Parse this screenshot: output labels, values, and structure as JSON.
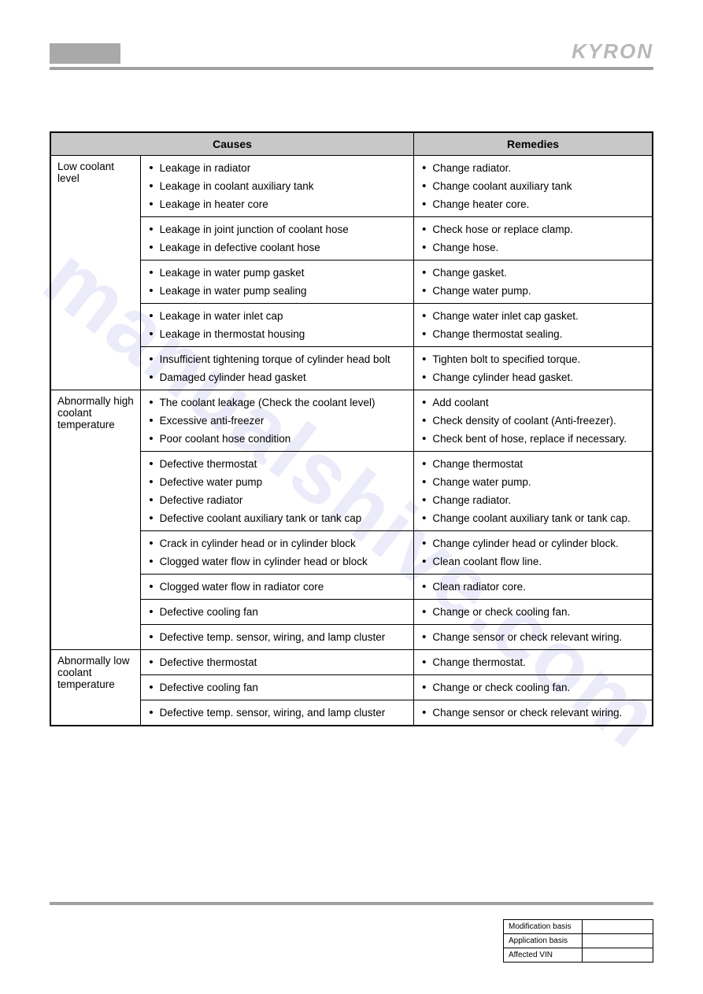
{
  "brand": "KYRON",
  "headers": {
    "causes": "Causes",
    "remedies": "Remedies"
  },
  "sections": [
    {
      "label": "Low coolant level",
      "groups": [
        {
          "causes": [
            "Leakage in radiator",
            "Leakage in coolant auxiliary tank",
            "Leakage in heater core"
          ],
          "remedies": [
            "Change radiator.",
            "Change coolant auxiliary tank",
            "Change heater core."
          ]
        },
        {
          "causes": [
            "Leakage in joint junction of coolant hose",
            "Leakage in defective coolant hose"
          ],
          "remedies": [
            "Check hose or replace clamp.",
            "Change hose."
          ]
        },
        {
          "causes": [
            "Leakage in water pump gasket",
            "Leakage in water pump sealing"
          ],
          "remedies": [
            "Change gasket.",
            "Change water pump."
          ]
        },
        {
          "causes": [
            "Leakage in water inlet cap",
            "Leakage in thermostat housing"
          ],
          "remedies": [
            "Change water inlet cap gasket.",
            "Change thermostat sealing."
          ]
        },
        {
          "causes": [
            "Insufficient tightening torque of cylinder head bolt",
            "Damaged cylinder head gasket"
          ],
          "remedies": [
            "Tighten bolt to specified torque.",
            "Change cylinder head gasket."
          ]
        }
      ]
    },
    {
      "label": "Abnormally high coolant temperature",
      "groups": [
        {
          "causes": [
            "The coolant leakage (Check the coolant level)",
            "Excessive anti-freezer",
            "Poor coolant hose condition"
          ],
          "remedies": [
            "Add coolant",
            "Check density of coolant (Anti-freezer).",
            "Check bent of hose, replace if necessary."
          ]
        },
        {
          "causes": [
            "Defective thermostat",
            "Defective water pump",
            "Defective radiator",
            "Defective coolant auxiliary tank or tank cap"
          ],
          "remedies": [
            "Change thermostat",
            "Change water pump.",
            "Change radiator.",
            "Change coolant auxiliary tank or tank cap."
          ]
        },
        {
          "causes": [
            "Crack in cylinder head or in cylinder block",
            "Clogged water flow in cylinder head or block"
          ],
          "remedies": [
            "Change cylinder head or cylinder block.",
            "Clean coolant flow line."
          ]
        },
        {
          "causes": [
            "Clogged water flow in radiator core"
          ],
          "remedies": [
            "Clean radiator core."
          ]
        },
        {
          "causes": [
            "Defective cooling fan"
          ],
          "remedies": [
            "Change or check cooling fan."
          ]
        },
        {
          "causes": [
            "Defective temp. sensor, wiring, and lamp cluster"
          ],
          "remedies": [
            "Change sensor or check relevant wiring."
          ]
        }
      ]
    },
    {
      "label": "Abnormally low coolant temperature",
      "groups": [
        {
          "causes": [
            "Defective thermostat"
          ],
          "remedies": [
            "Change thermostat."
          ]
        },
        {
          "causes": [
            "Defective cooling fan"
          ],
          "remedies": [
            "Change or check cooling fan."
          ]
        },
        {
          "causes": [
            "Defective temp. sensor, wiring, and lamp cluster"
          ],
          "remedies": [
            "Change sensor or check relevant wiring."
          ]
        }
      ]
    }
  ],
  "footer": {
    "rows": [
      "Modification basis",
      "Application basis",
      "Affected VIN"
    ]
  },
  "watermark": "manualshive.com",
  "colors": {
    "header_bg": "#c8c8c8",
    "rule": "#a0a0a0",
    "graybox": "#a9a9a9",
    "brand": "#b8b8b8",
    "border": "#000000"
  }
}
